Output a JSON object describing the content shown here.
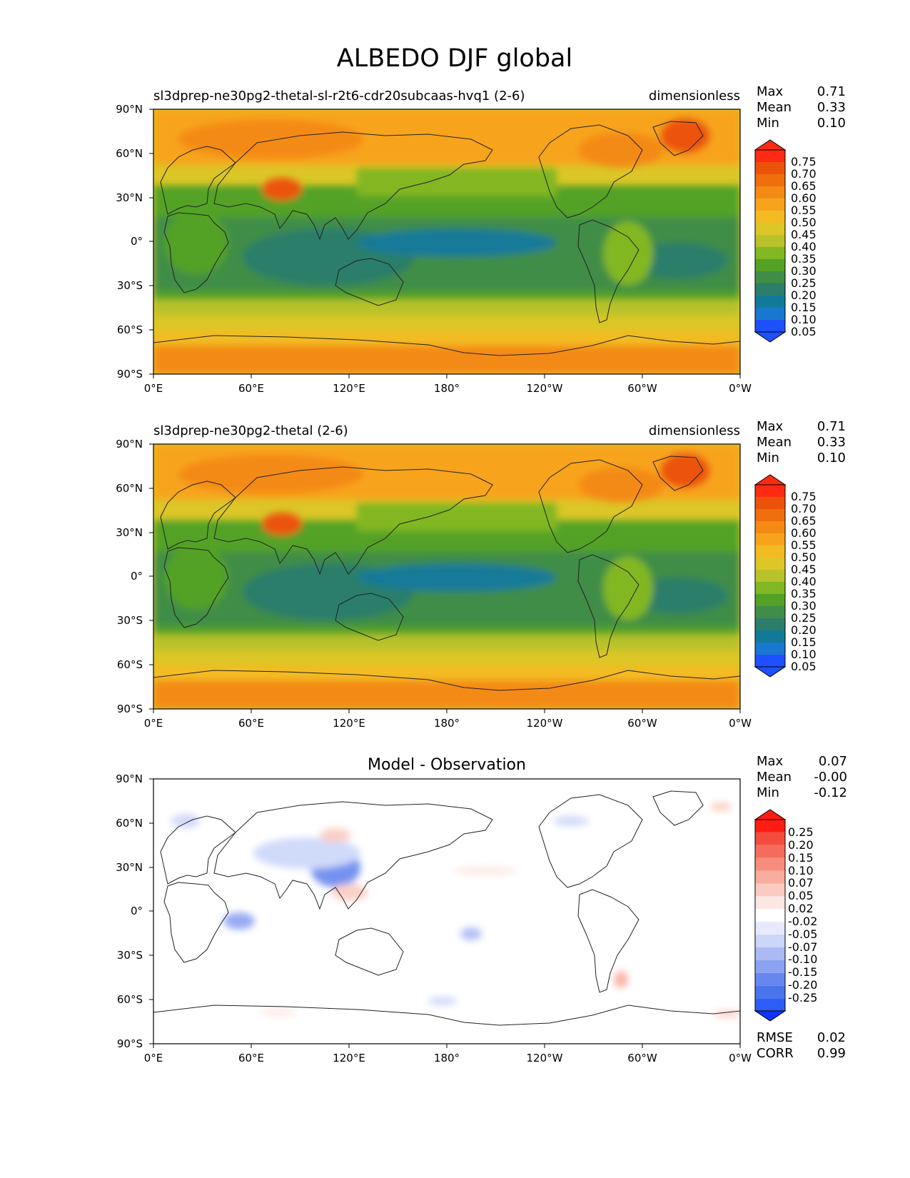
{
  "figure": {
    "title": "ALBEDO DJF global"
  },
  "colors": {
    "land_outline": "#222222",
    "field_scale": [
      "#1e50ff",
      "#1878d0",
      "#127a98",
      "#2c7e6a",
      "#3f8d46",
      "#53a226",
      "#82b724",
      "#b8c22a",
      "#dcc628",
      "#f3bb22",
      "#f7a41c",
      "#f48a14",
      "#f06e0c",
      "#ec520a",
      "#ff2a12"
    ],
    "diff_scale": [
      "#0f33ff",
      "#2d5cf6",
      "#4a74ec",
      "#6687ee",
      "#8ca2f2",
      "#acbaf4",
      "#ccd6f9",
      "#e6eafc",
      "#ffffff",
      "#fde7e3",
      "#fbcbc1",
      "#f9ad9f",
      "#f78d7c",
      "#f46c5c",
      "#f24c3c",
      "#ff1c14"
    ]
  },
  "chart_data": [
    {
      "type": "heatmap",
      "panel": "test",
      "title_left": "sl3dprep-ne30pg2-thetal-sl-r2t6-cdr20subcaas-hvq1 (2-6)",
      "title_right": "dimensionless",
      "stats": [
        {
          "label": "Max",
          "value": "0.71"
        },
        {
          "label": "Mean",
          "value": "0.33"
        },
        {
          "label": "Min",
          "value": "0.10"
        }
      ],
      "colorbar": {
        "levels": [
          "0.75",
          "0.70",
          "0.65",
          "0.60",
          "0.55",
          "0.50",
          "0.45",
          "0.40",
          "0.35",
          "0.30",
          "0.25",
          "0.20",
          "0.15",
          "0.10",
          "0.05"
        ],
        "extend": "both"
      },
      "x_ticks": [
        "0°E",
        "60°E",
        "120°E",
        "180°",
        "120°W",
        "60°W",
        "0°W"
      ],
      "y_ticks": [
        "90°N",
        "60°N",
        "30°N",
        "0°",
        "30°S",
        "60°S",
        "90°S"
      ],
      "xlim": [
        0,
        360
      ],
      "ylim": [
        -90,
        90
      ]
    },
    {
      "type": "heatmap",
      "panel": "reference",
      "title_left": "sl3dprep-ne30pg2-thetal (2-6)",
      "title_right": "dimensionless",
      "stats": [
        {
          "label": "Max",
          "value": "0.71"
        },
        {
          "label": "Mean",
          "value": "0.33"
        },
        {
          "label": "Min",
          "value": "0.10"
        }
      ],
      "colorbar": {
        "levels": [
          "0.75",
          "0.70",
          "0.65",
          "0.60",
          "0.55",
          "0.50",
          "0.45",
          "0.40",
          "0.35",
          "0.30",
          "0.25",
          "0.20",
          "0.15",
          "0.10",
          "0.05"
        ],
        "extend": "both"
      },
      "x_ticks": [
        "0°E",
        "60°E",
        "120°E",
        "180°",
        "120°W",
        "60°W",
        "0°W"
      ],
      "y_ticks": [
        "90°N",
        "60°N",
        "30°N",
        "0°",
        "30°S",
        "60°S",
        "90°S"
      ],
      "xlim": [
        0,
        360
      ],
      "ylim": [
        -90,
        90
      ]
    },
    {
      "type": "heatmap",
      "panel": "diff",
      "title_center": "Model - Observation",
      "stats": [
        {
          "label": "Max",
          "value": "0.07"
        },
        {
          "label": "Mean",
          "value": "-0.00"
        },
        {
          "label": "Min",
          "value": "-0.12"
        }
      ],
      "metrics": [
        {
          "label": "RMSE",
          "value": "0.02"
        },
        {
          "label": "CORR",
          "value": "0.99"
        }
      ],
      "colorbar": {
        "levels": [
          "0.25",
          "0.20",
          "0.15",
          "0.10",
          "0.07",
          "0.05",
          "0.02",
          "-0.02",
          "-0.05",
          "-0.07",
          "-0.10",
          "-0.15",
          "-0.20",
          "-0.25"
        ],
        "extend": "both"
      },
      "x_ticks": [
        "0°E",
        "60°E",
        "120°E",
        "180°",
        "120°W",
        "60°W",
        "0°W"
      ],
      "y_ticks": [
        "90°N",
        "60°N",
        "30°N",
        "0°",
        "30°S",
        "60°S",
        "90°S"
      ],
      "xlim": [
        0,
        360
      ],
      "ylim": [
        -90,
        90
      ]
    }
  ]
}
